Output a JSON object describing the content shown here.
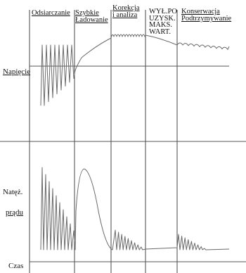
{
  "phases": [
    {
      "id": "desulfation",
      "label": "Odsiarczanie"
    },
    {
      "id": "fast_charge",
      "label": "Szybkie\nŁadowanie"
    },
    {
      "id": "correction",
      "label": "Korekcja\ni analiza"
    },
    {
      "id": "off_max",
      "label": "WYŁ.PO\nUZYSK.\nMAKS.\nWART."
    },
    {
      "id": "maintenance",
      "label": "Konserwacja\nPodtrzymywanie"
    }
  ],
  "axes": {
    "voltage": "Napięcie",
    "current_line1": "Natęż.",
    "current_line2": "prądu",
    "time": "Czas"
  },
  "colors": {
    "line": "#444444",
    "axis": "#555555",
    "signal": "#6a6a6a"
  }
}
